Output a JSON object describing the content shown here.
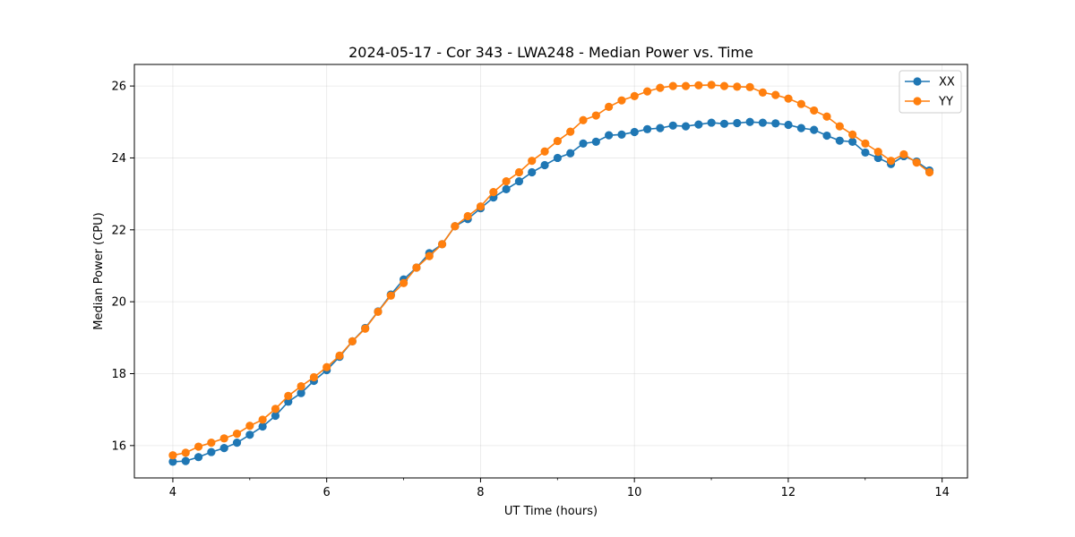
{
  "chart_data": {
    "type": "line",
    "title": "2024-05-17 - Cor 343 - LWA248 - Median Power vs. Time",
    "xlabel": "UT Time (hours)",
    "ylabel": "Median Power (CPU)",
    "xlim": [
      3.5,
      14.33
    ],
    "ylim": [
      15.1,
      26.6
    ],
    "xticks": [
      4,
      6,
      8,
      10,
      12,
      14
    ],
    "yticks": [
      16,
      18,
      20,
      22,
      24,
      26
    ],
    "grid": true,
    "legend_position": "top-right",
    "x_start": 4.0,
    "x_step": 0.1667,
    "series": [
      {
        "name": "XX",
        "color": "#1f77b4",
        "values": [
          15.55,
          15.57,
          15.68,
          15.82,
          15.93,
          16.08,
          16.3,
          16.53,
          16.83,
          17.22,
          17.46,
          17.8,
          18.1,
          18.47,
          18.9,
          19.27,
          19.73,
          20.2,
          20.62,
          20.95,
          21.35,
          21.6,
          22.1,
          22.3,
          22.6,
          22.9,
          23.13,
          23.35,
          23.6,
          23.8,
          24.0,
          24.13,
          24.4,
          24.45,
          24.63,
          24.65,
          24.72,
          24.8,
          24.83,
          24.9,
          24.88,
          24.93,
          24.98,
          24.95,
          24.97,
          25.0,
          24.98,
          24.96,
          24.92,
          24.83,
          24.78,
          24.62,
          24.48,
          24.45,
          24.15,
          24.0,
          23.83,
          24.05,
          23.9,
          23.65
        ]
      },
      {
        "name": "YY",
        "color": "#ff7f0e",
        "values": [
          15.73,
          15.8,
          15.97,
          16.08,
          16.2,
          16.33,
          16.55,
          16.72,
          17.02,
          17.38,
          17.65,
          17.9,
          18.18,
          18.5,
          18.9,
          19.25,
          19.72,
          20.17,
          20.52,
          20.95,
          21.27,
          21.6,
          22.1,
          22.38,
          22.65,
          23.05,
          23.35,
          23.6,
          23.92,
          24.18,
          24.47,
          24.73,
          25.05,
          25.18,
          25.42,
          25.6,
          25.72,
          25.85,
          25.95,
          26.0,
          26.0,
          26.02,
          26.03,
          26.0,
          25.98,
          25.97,
          25.82,
          25.75,
          25.65,
          25.5,
          25.32,
          25.15,
          24.88,
          24.65,
          24.4,
          24.17,
          23.92,
          24.1,
          23.87,
          23.6
        ]
      }
    ]
  }
}
